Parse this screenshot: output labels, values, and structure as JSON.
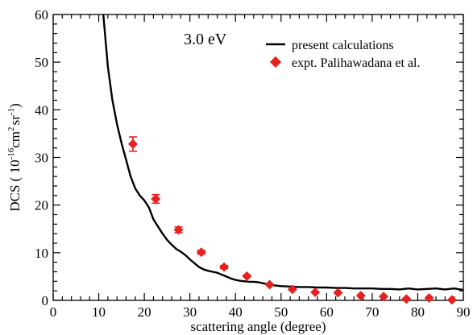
{
  "chart_data": {
    "type": "scatter",
    "annotation": "3.0 eV",
    "xlabel": "scattering angle (degree)",
    "ylabel": {
      "prefix": "DCS ( 10",
      "exp1": "-16",
      "mid1": "cm",
      "exp2": "2",
      "mid2": "sr",
      "exp3": "-1",
      "suffix": ")"
    },
    "xlim": [
      0,
      90
    ],
    "ylim": [
      0,
      60
    ],
    "x_ticks": [
      "0",
      "10",
      "20",
      "30",
      "40",
      "50",
      "60",
      "70",
      "80",
      "90"
    ],
    "y_ticks": [
      "0",
      "10",
      "20",
      "30",
      "40",
      "50",
      "60"
    ],
    "grid": false,
    "legend_position": "top-right",
    "series": [
      {
        "name": "present calculations",
        "kind": "line",
        "color": "#000000",
        "x": [
          11,
          12,
          13,
          14,
          15,
          16,
          17,
          18,
          19,
          20,
          21,
          22,
          23,
          24,
          25,
          26,
          27,
          28,
          29,
          30,
          31,
          32,
          33,
          34,
          35,
          36,
          37,
          38,
          39,
          40,
          41,
          42,
          43,
          44,
          45,
          46,
          47,
          48,
          50,
          52,
          54,
          56,
          58,
          60,
          62,
          64,
          66,
          68,
          70,
          72,
          74,
          76,
          78,
          80,
          82,
          84,
          86,
          88,
          90
        ],
        "y": [
          60,
          49,
          42,
          37,
          33,
          29.5,
          26,
          23.5,
          22,
          21,
          19.5,
          17,
          15.5,
          14,
          12.7,
          11.7,
          10.8,
          10.2,
          9.5,
          8.6,
          7.8,
          7.0,
          6.5,
          6.2,
          6.0,
          5.8,
          5.4,
          5.0,
          4.6,
          4.3,
          4.1,
          4.0,
          3.9,
          3.9,
          3.8,
          3.6,
          3.4,
          3.2,
          3.0,
          2.9,
          2.8,
          2.8,
          2.7,
          2.7,
          2.6,
          2.6,
          2.5,
          2.5,
          2.5,
          2.4,
          2.4,
          2.3,
          2.5,
          2.3,
          2.4,
          2.5,
          2.3,
          2.5,
          2.2
        ]
      },
      {
        "name": "expt. Palihawadana et al.",
        "kind": "scatter",
        "color": "#e8201e",
        "x": [
          17.5,
          22.5,
          27.5,
          32.5,
          37.5,
          42.5,
          47.5,
          52.5,
          57.5,
          62.5,
          67.5,
          72.5,
          77.5,
          82.5,
          87.5
        ],
        "y": [
          32.8,
          21.3,
          14.8,
          10.1,
          7.0,
          5.1,
          3.3,
          2.3,
          1.7,
          1.6,
          1.0,
          0.8,
          0.3,
          0.5,
          0.1
        ],
        "err": [
          1.5,
          0.9,
          0.6,
          0.4,
          0.3,
          0.2,
          0.15,
          0,
          0,
          0,
          0,
          0,
          0,
          0,
          0
        ]
      }
    ]
  }
}
